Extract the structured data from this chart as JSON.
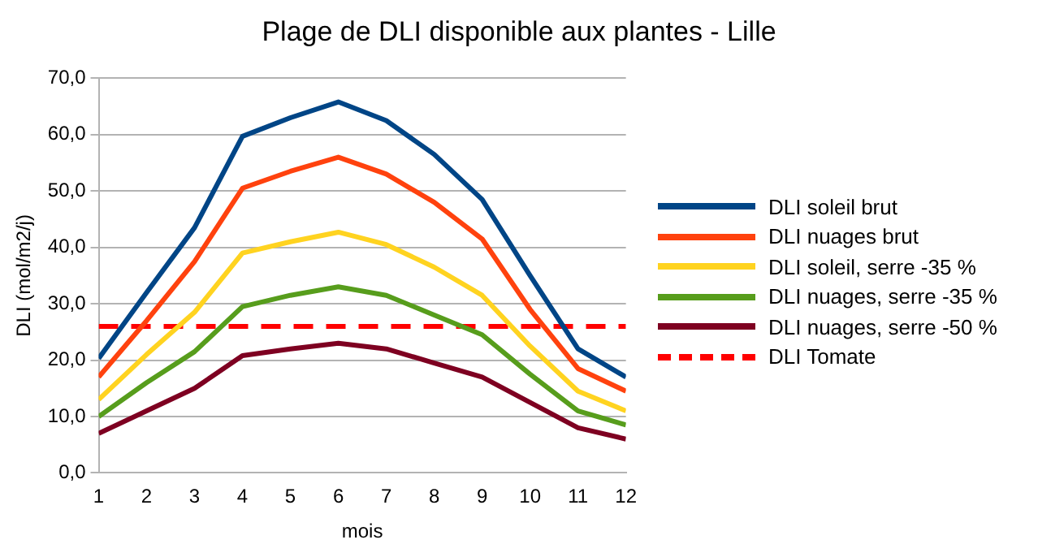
{
  "chart_data": {
    "type": "line",
    "title": "Plage de DLI disponible aux plantes - Lille",
    "xlabel": "mois",
    "ylabel": "DLI (mol/m2/j)",
    "x": [
      1,
      2,
      3,
      4,
      5,
      6,
      7,
      8,
      9,
      10,
      11,
      12
    ],
    "xlim": [
      1,
      12
    ],
    "xticks": [
      1,
      2,
      3,
      4,
      5,
      6,
      7,
      8,
      9,
      10,
      11,
      12
    ],
    "series": [
      {
        "name": "DLI soleil brut",
        "color": "#004586",
        "values": [
          20.3,
          32,
          43.5,
          59.7,
          63,
          65.8,
          62.5,
          56.5,
          48.5,
          35,
          22,
          17
        ]
      },
      {
        "name": "DLI nuages brut",
        "color": "#ff420e",
        "values": [
          17,
          27,
          37.5,
          50.5,
          53.5,
          56,
          53,
          48,
          41.5,
          29,
          18.5,
          14.5
        ]
      },
      {
        "name": "DLI soleil, serre -35 %",
        "color": "#ffd320",
        "values": [
          13,
          21,
          28.5,
          39,
          41,
          42.7,
          40.5,
          36.5,
          31.5,
          22.5,
          14.5,
          11
        ]
      },
      {
        "name": "DLI nuages, serre -35 %",
        "color": "#579d1c",
        "values": [
          10,
          16,
          21.5,
          29.5,
          31.5,
          33,
          31.5,
          28,
          24.5,
          17.5,
          11,
          8.5
        ]
      },
      {
        "name": "DLI nuages, serre -50 %",
        "color": "#7e0021",
        "values": [
          7,
          11,
          15,
          20.8,
          22,
          23,
          22,
          19.5,
          17,
          12.5,
          8,
          6
        ]
      },
      {
        "name": "DLI Tomate",
        "color": "#ff0000",
        "line_style": "dashed",
        "values": [
          26,
          26,
          26,
          26,
          26,
          26,
          26,
          26,
          26,
          26,
          26,
          26
        ]
      }
    ],
    "ylim": [
      0,
      70
    ],
    "yticks": [
      {
        "value": 0,
        "label": "0,0"
      },
      {
        "value": 10,
        "label": "10,0"
      },
      {
        "value": 20,
        "label": "20,0"
      },
      {
        "value": 30,
        "label": "30,0"
      },
      {
        "value": 40,
        "label": "40,0"
      },
      {
        "value": 50,
        "label": "50,0"
      },
      {
        "value": 60,
        "label": "60,0"
      },
      {
        "value": 70,
        "label": "70,0"
      }
    ],
    "grid": "y",
    "legend": "right",
    "marker": "none"
  }
}
